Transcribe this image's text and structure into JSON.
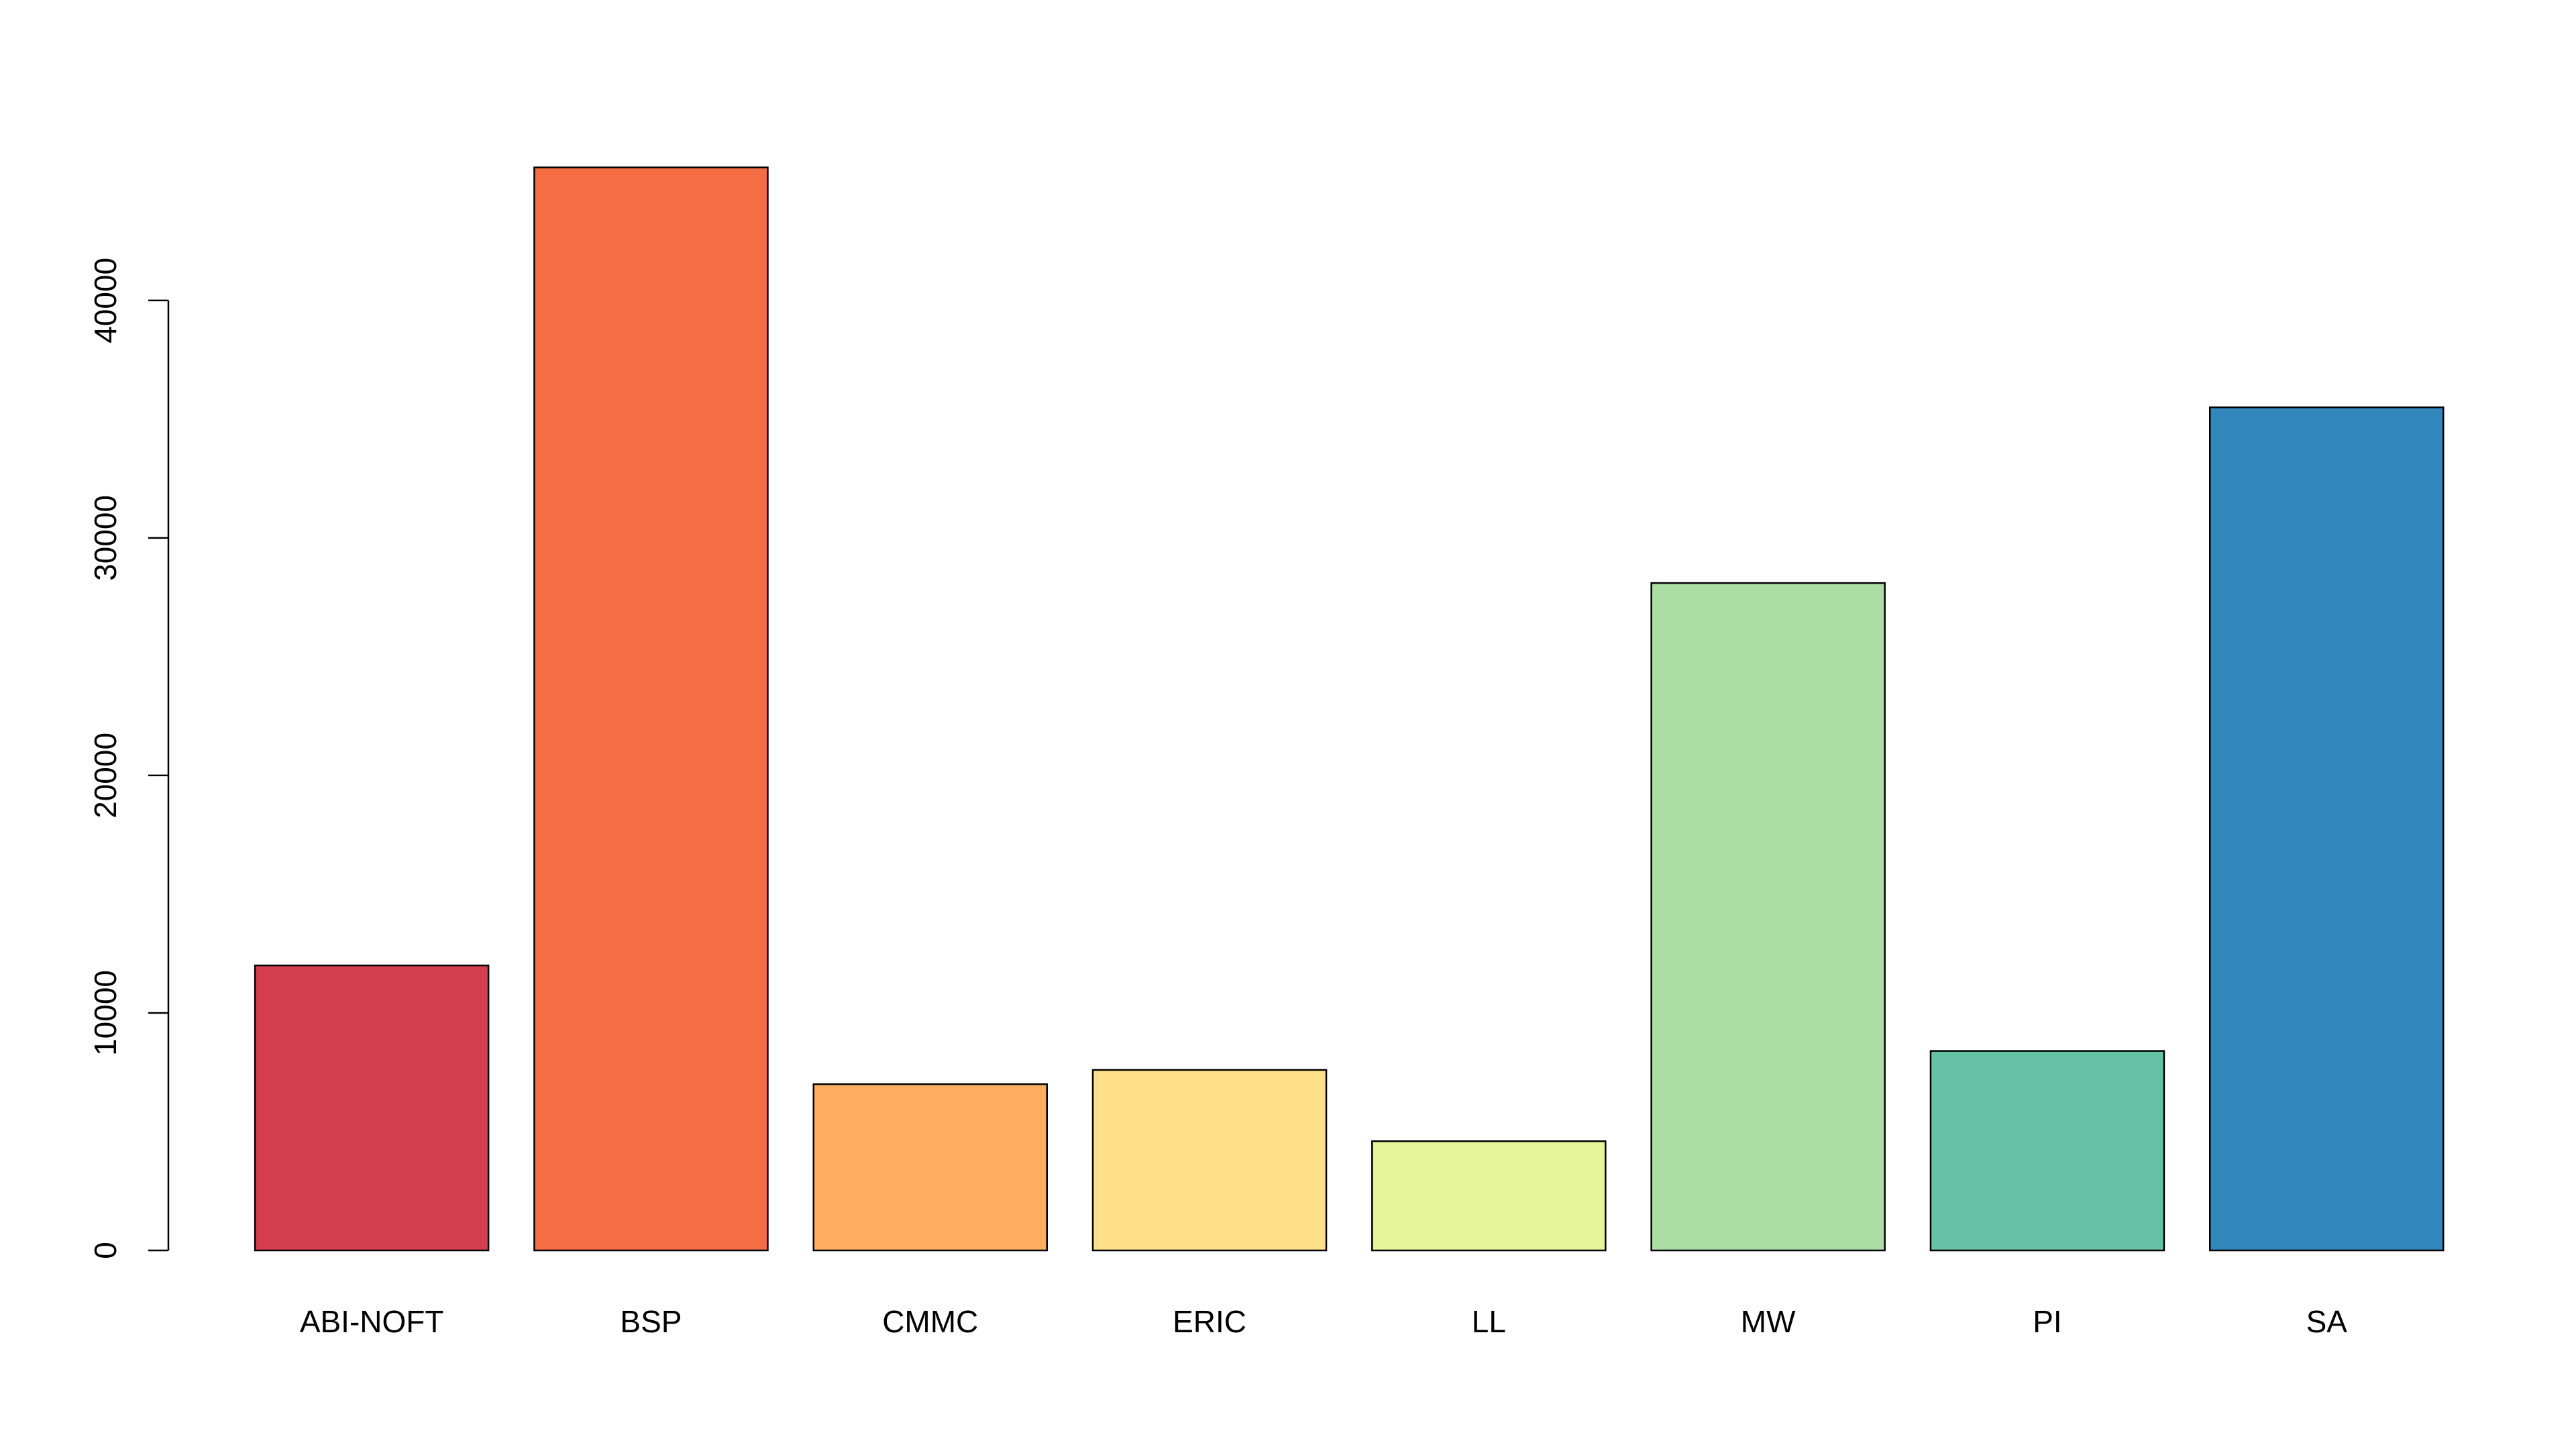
{
  "chart_data": {
    "type": "bar",
    "categories": [
      "ABI-NOFT",
      "BSP",
      "CMMC",
      "ERIC",
      "LL",
      "MW",
      "PI",
      "SA"
    ],
    "series": [
      {
        "values": [
          12000,
          45600,
          7000,
          7600,
          4600,
          28100,
          8400,
          35500
        ]
      }
    ],
    "colors": [
      "#D53E4F",
      "#F46D43",
      "#FDAE61",
      "#FEE08B",
      "#E6F598",
      "#ABDDA4",
      "#66C2A5",
      "#3288BD"
    ],
    "ylim": [
      0,
      47000
    ],
    "yticks": [
      0,
      10000,
      20000,
      30000,
      40000
    ],
    "grid": false
  }
}
